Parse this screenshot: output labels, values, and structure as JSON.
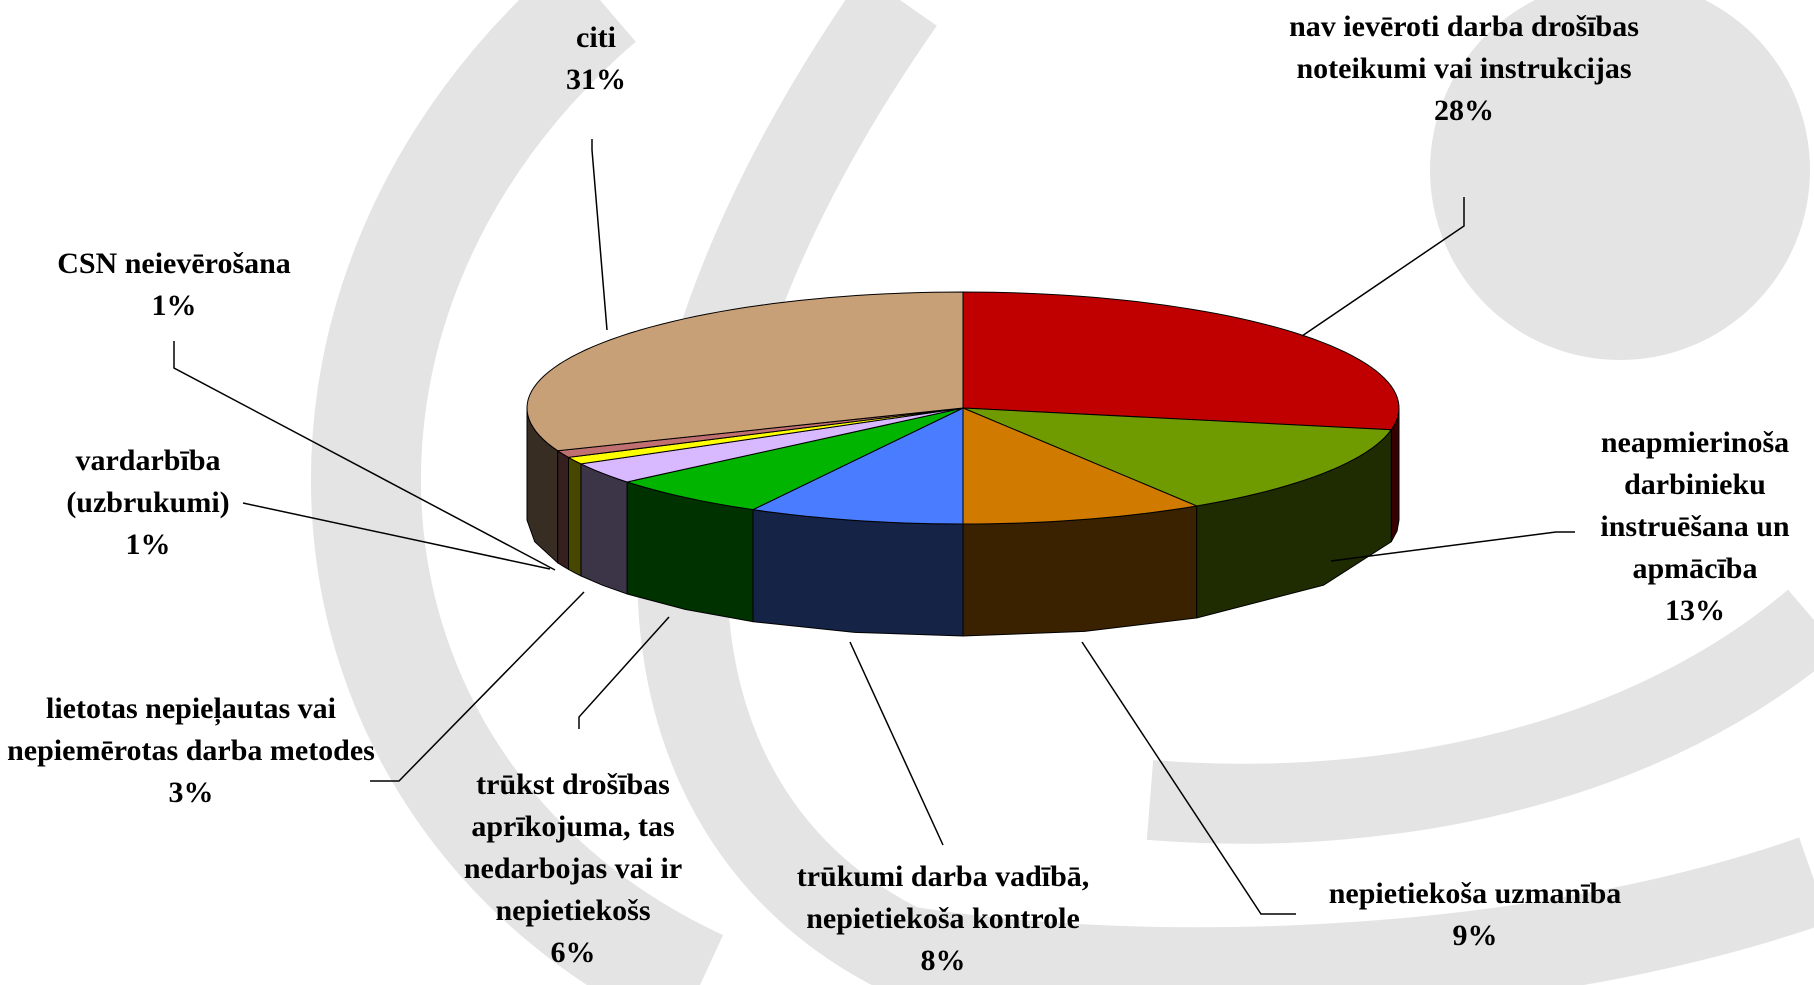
{
  "chart_data": {
    "type": "pie3d",
    "categories": [
      "nav ievēroti darba drošības noteikumi vai instrukcijas",
      "neapmierinoša darbinieku instruēšana un apmācība",
      "nepietiekoša uzmanība",
      "trūkumi darba vadībā, nepietiekoša kontrole",
      "trūkst drošības aprīkojuma, tas nedarbojas vai ir nepietiekošs",
      "lietotas nepieļautas vai nepiemērotas darba metodes",
      "vardarbība (uzbrukumi)",
      "CSN neievērošana",
      "citi"
    ],
    "values": [
      28,
      13,
      9,
      8,
      6,
      3,
      1,
      1,
      31
    ],
    "value_labels": [
      "28%",
      "13%",
      "9%",
      "8%",
      "6%",
      "3%",
      "1%",
      "1%",
      "31%"
    ],
    "colors": [
      "#c00000",
      "#6f9a00",
      "#d07a00",
      "#4a7cff",
      "#00b400",
      "#d8b8ff",
      "#ffff00",
      "#c07070",
      "#c8a078"
    ]
  }
}
